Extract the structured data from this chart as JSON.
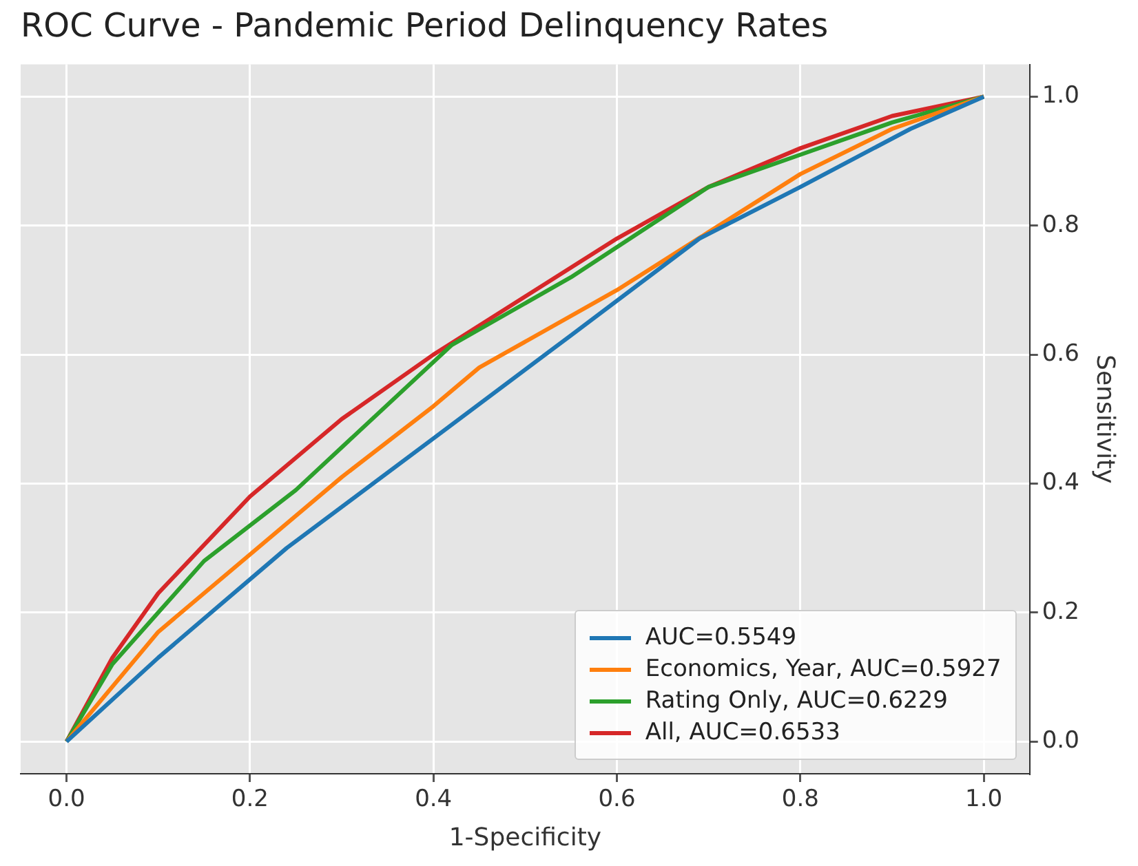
{
  "chart_data": {
    "type": "line",
    "title": "ROC Curve - Pandemic Period Delinquency Rates",
    "xlabel": "1-Specificity",
    "ylabel": "Sensitivity",
    "xlim": [
      -0.05,
      1.05
    ],
    "ylim": [
      -0.05,
      1.05
    ],
    "xticks": [
      {
        "value": 0,
        "label": "0.0"
      },
      0.2,
      0.4,
      0.6,
      0.8,
      {
        "value": 1,
        "label": "1.0"
      }
    ],
    "yticks": [
      {
        "value": 0,
        "label": "0.0"
      },
      0.2,
      0.4,
      0.6,
      0.8,
      {
        "value": 1,
        "label": "1.0"
      }
    ],
    "grid": true,
    "legend": "bottom right",
    "marker": "none",
    "line_style": "solid",
    "series": [
      {
        "name": "AUC=0.5549",
        "color": "#1f77b4",
        "x": [
          0,
          0.1,
          0.24,
          0.4,
          0.55,
          0.69,
          0.8,
          0.92,
          1
        ],
        "values": [
          0,
          0.13,
          0.3,
          0.47,
          0.63,
          0.78,
          0.86,
          0.95,
          1
        ]
      },
      {
        "name": "Economics, Year, AUC=0.5927",
        "color": "#ff7f0e",
        "x": [
          0,
          0.1,
          0.2,
          0.3,
          0.4,
          0.45,
          0.6,
          0.7,
          0.8,
          0.9,
          1
        ],
        "values": [
          0,
          0.17,
          0.29,
          0.41,
          0.52,
          0.58,
          0.7,
          0.79,
          0.88,
          0.95,
          1
        ]
      },
      {
        "name": "Rating Only, AUC=0.6229",
        "color": "#2ca02c",
        "x": [
          0,
          0.05,
          0.1,
          0.15,
          0.25,
          0.42,
          0.55,
          0.7,
          0.8,
          0.9,
          1
        ],
        "values": [
          0,
          0.12,
          0.2,
          0.28,
          0.39,
          0.615,
          0.72,
          0.86,
          0.91,
          0.96,
          1
        ]
      },
      {
        "name": "All, AUC=0.6533",
        "color": "#d62728",
        "x": [
          0,
          0.05,
          0.1,
          0.2,
          0.3,
          0.4,
          0.5,
          0.6,
          0.7,
          0.8,
          0.9,
          1
        ],
        "values": [
          0,
          0.13,
          0.23,
          0.38,
          0.5,
          0.6,
          0.69,
          0.78,
          0.86,
          0.92,
          0.97,
          1
        ]
      }
    ]
  }
}
